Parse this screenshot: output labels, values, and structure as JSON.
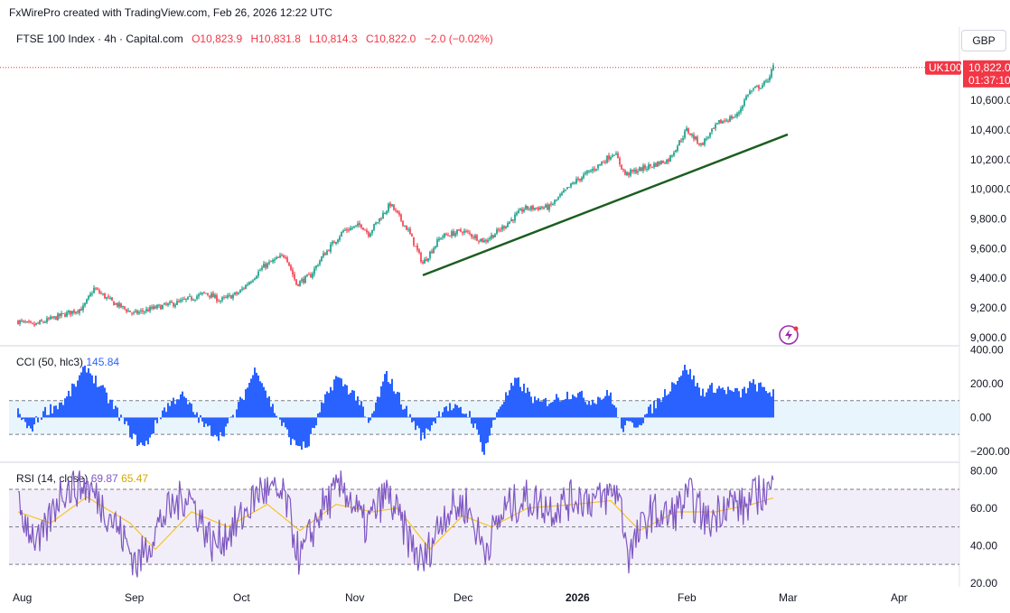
{
  "attribution": "FxWirePro created with TradingView.com, Feb 26, 2026 12:22 UTC",
  "currency_button": "GBP",
  "colors": {
    "up": "#089981",
    "down": "#f23645",
    "trendline": "#1b5e20",
    "cci": "#2962ff",
    "rsi": "#7e57c2",
    "rsi_ma": "#f7c325",
    "last_price": "#f23645"
  },
  "main_legend": {
    "symbol": "FTSE 100 Index · 4h · Capital.com",
    "open": "O10,823.9",
    "high": "H10,831.8",
    "low": "L10,814.3",
    "close": "C10,822.0",
    "change": "−2.0 (−0.02%)"
  },
  "price_tag": {
    "ticker": "UK100",
    "price": "10,822.0",
    "countdown": "01:37:10"
  },
  "cci_legend": {
    "label": "CCI (50, hlc3)",
    "value": "145.84"
  },
  "rsi_legend": {
    "label": "RSI (14, close)",
    "value": "69.87",
    "ma_value": "65.47"
  },
  "chart_data": [
    {
      "type": "candlestick",
      "title": "FTSE 100 Index · 4h · Capital.com",
      "ylim": [
        8950,
        10900
      ],
      "yticks": [
        "10,600.0",
        "10,400.0",
        "10,200.0",
        "10,000.0",
        "9,800.0",
        "9,600.0",
        "9,400.0",
        "9,200.0",
        "9,000.0"
      ],
      "ytick_values": [
        10600,
        10400,
        10200,
        10000,
        9800,
        9600,
        9400,
        9200,
        9000
      ],
      "xticks": [
        "Aug",
        "Sep",
        "Oct",
        "Nov",
        "Dec",
        "2026",
        "Feb",
        "Mar",
        "Apr"
      ],
      "close_path": [
        [
          "2025-08-01",
          9110
        ],
        [
          "2025-08-05",
          9080
        ],
        [
          "2025-08-12",
          9140
        ],
        [
          "2025-08-19",
          9200
        ],
        [
          "2025-08-22",
          9330
        ],
        [
          "2025-08-27",
          9240
        ],
        [
          "2025-09-02",
          9160
        ],
        [
          "2025-09-08",
          9200
        ],
        [
          "2025-09-15",
          9240
        ],
        [
          "2025-09-22",
          9300
        ],
        [
          "2025-09-26",
          9250
        ],
        [
          "2025-10-01",
          9300
        ],
        [
          "2025-10-08",
          9480
        ],
        [
          "2025-10-14",
          9560
        ],
        [
          "2025-10-17",
          9360
        ],
        [
          "2025-10-21",
          9420
        ],
        [
          "2025-10-24",
          9540
        ],
        [
          "2025-10-30",
          9720
        ],
        [
          "2025-11-04",
          9760
        ],
        [
          "2025-11-06",
          9700
        ],
        [
          "2025-11-12",
          9900
        ],
        [
          "2025-11-17",
          9720
        ],
        [
          "2025-11-21",
          9500
        ],
        [
          "2025-11-26",
          9680
        ],
        [
          "2025-12-02",
          9720
        ],
        [
          "2025-12-08",
          9650
        ],
        [
          "2025-12-12",
          9720
        ],
        [
          "2025-12-19",
          9870
        ],
        [
          "2025-12-26",
          9880
        ],
        [
          "2026-01-02",
          10050
        ],
        [
          "2026-01-08",
          10150
        ],
        [
          "2026-01-13",
          10250
        ],
        [
          "2026-01-16",
          10100
        ],
        [
          "2026-01-22",
          10150
        ],
        [
          "2026-01-28",
          10200
        ],
        [
          "2026-02-02",
          10400
        ],
        [
          "2026-02-06",
          10300
        ],
        [
          "2026-02-11",
          10450
        ],
        [
          "2026-02-16",
          10500
        ],
        [
          "2026-02-19",
          10650
        ],
        [
          "2026-02-24",
          10720
        ],
        [
          "2026-02-26",
          10822
        ]
      ],
      "trendline": {
        "start": [
          "2025-11-21",
          9420
        ],
        "end": [
          "2026-03-02",
          10370
        ]
      },
      "last_price": 10822.0
    },
    {
      "type": "bar",
      "title": "CCI (50, hlc3)",
      "ylim": [
        -260,
        420
      ],
      "yticks": [
        "400.00",
        "200.00",
        "0.00",
        "−200.00"
      ],
      "ytick_values": [
        400,
        200,
        0,
        -200
      ],
      "bands": [
        -100,
        100
      ],
      "last_value": 145.84,
      "path": [
        [
          "2025-08-01",
          40
        ],
        [
          "2025-08-04",
          -80
        ],
        [
          "2025-08-08",
          30
        ],
        [
          "2025-08-14",
          100
        ],
        [
          "2025-08-20",
          300
        ],
        [
          "2025-08-27",
          80
        ],
        [
          "2025-09-02",
          -120
        ],
        [
          "2025-09-05",
          -180
        ],
        [
          "2025-09-10",
          40
        ],
        [
          "2025-09-15",
          140
        ],
        [
          "2025-09-22",
          -60
        ],
        [
          "2025-09-26",
          -110
        ],
        [
          "2025-09-30",
          20
        ],
        [
          "2025-10-06",
          300
        ],
        [
          "2025-10-10",
          80
        ],
        [
          "2025-10-16",
          -150
        ],
        [
          "2025-10-20",
          -180
        ],
        [
          "2025-10-24",
          60
        ],
        [
          "2025-10-28",
          240
        ],
        [
          "2025-11-03",
          120
        ],
        [
          "2025-11-06",
          -50
        ],
        [
          "2025-11-11",
          260
        ],
        [
          "2025-11-17",
          20
        ],
        [
          "2025-11-21",
          -120
        ],
        [
          "2025-11-27",
          70
        ],
        [
          "2025-12-04",
          20
        ],
        [
          "2025-12-08",
          -200
        ],
        [
          "2025-12-12",
          60
        ],
        [
          "2025-12-17",
          220
        ],
        [
          "2025-12-23",
          80
        ],
        [
          "2026-01-02",
          150
        ],
        [
          "2026-01-06",
          100
        ],
        [
          "2026-01-12",
          140
        ],
        [
          "2026-01-15",
          -60
        ],
        [
          "2026-01-20",
          -30
        ],
        [
          "2026-01-26",
          120
        ],
        [
          "2026-02-02",
          300
        ],
        [
          "2026-02-06",
          150
        ],
        [
          "2026-02-10",
          180
        ],
        [
          "2026-02-17",
          140
        ],
        [
          "2026-02-20",
          200
        ],
        [
          "2026-02-26",
          145.84
        ]
      ]
    },
    {
      "type": "line",
      "title": "RSI (14, close)",
      "ylim": [
        18,
        84
      ],
      "yticks": [
        "80.00",
        "60.00",
        "40.00",
        "20.00"
      ],
      "ytick_values": [
        80,
        60,
        40,
        20
      ],
      "bands": [
        30,
        50,
        70
      ],
      "series": [
        {
          "name": "RSI",
          "last": 69.87,
          "values": [
            [
              "2025-08-01",
              60
            ],
            [
              "2025-08-07",
              40
            ],
            [
              "2025-08-13",
              70
            ],
            [
              "2025-08-20",
              72
            ],
            [
              "2025-08-27",
              55
            ],
            [
              "2025-09-03",
              30
            ],
            [
              "2025-09-10",
              55
            ],
            [
              "2025-09-17",
              68
            ],
            [
              "2025-09-24",
              40
            ],
            [
              "2025-10-01",
              52
            ],
            [
              "2025-10-07",
              70
            ],
            [
              "2025-10-14",
              65
            ],
            [
              "2025-10-18",
              32
            ],
            [
              "2025-10-24",
              60
            ],
            [
              "2025-10-30",
              72
            ],
            [
              "2025-11-05",
              50
            ],
            [
              "2025-11-11",
              68
            ],
            [
              "2025-11-18",
              40
            ],
            [
              "2025-11-21",
              30
            ],
            [
              "2025-11-27",
              58
            ],
            [
              "2025-12-03",
              62
            ],
            [
              "2025-12-08",
              38
            ],
            [
              "2025-12-14",
              60
            ],
            [
              "2025-12-20",
              65
            ],
            [
              "2025-12-27",
              60
            ],
            [
              "2026-01-03",
              66
            ],
            [
              "2026-01-09",
              64
            ],
            [
              "2026-01-14",
              70
            ],
            [
              "2026-01-17",
              35
            ],
            [
              "2026-01-23",
              58
            ],
            [
              "2026-01-28",
              55
            ],
            [
              "2026-02-03",
              66
            ],
            [
              "2026-02-08",
              52
            ],
            [
              "2026-02-13",
              64
            ],
            [
              "2026-02-18",
              60
            ],
            [
              "2026-02-22",
              68
            ],
            [
              "2026-02-26",
              69.87
            ]
          ]
        },
        {
          "name": "RSI-based MA",
          "last": 65.47,
          "values": [
            [
              "2025-08-01",
              58
            ],
            [
              "2025-08-10",
              52
            ],
            [
              "2025-08-20",
              66
            ],
            [
              "2025-09-01",
              52
            ],
            [
              "2025-09-08",
              38
            ],
            [
              "2025-09-18",
              58
            ],
            [
              "2025-09-28",
              50
            ],
            [
              "2025-10-09",
              62
            ],
            [
              "2025-10-18",
              48
            ],
            [
              "2025-10-28",
              62
            ],
            [
              "2025-11-07",
              58
            ],
            [
              "2025-11-14",
              60
            ],
            [
              "2025-11-23",
              38
            ],
            [
              "2025-12-02",
              56
            ],
            [
              "2025-12-10",
              50
            ],
            [
              "2025-12-20",
              60
            ],
            [
              "2026-01-02",
              62
            ],
            [
              "2026-01-12",
              64
            ],
            [
              "2026-01-20",
              48
            ],
            [
              "2026-01-30",
              58
            ],
            [
              "2026-02-10",
              58
            ],
            [
              "2026-02-20",
              62
            ],
            [
              "2026-02-26",
              65.47
            ]
          ]
        }
      ]
    }
  ]
}
